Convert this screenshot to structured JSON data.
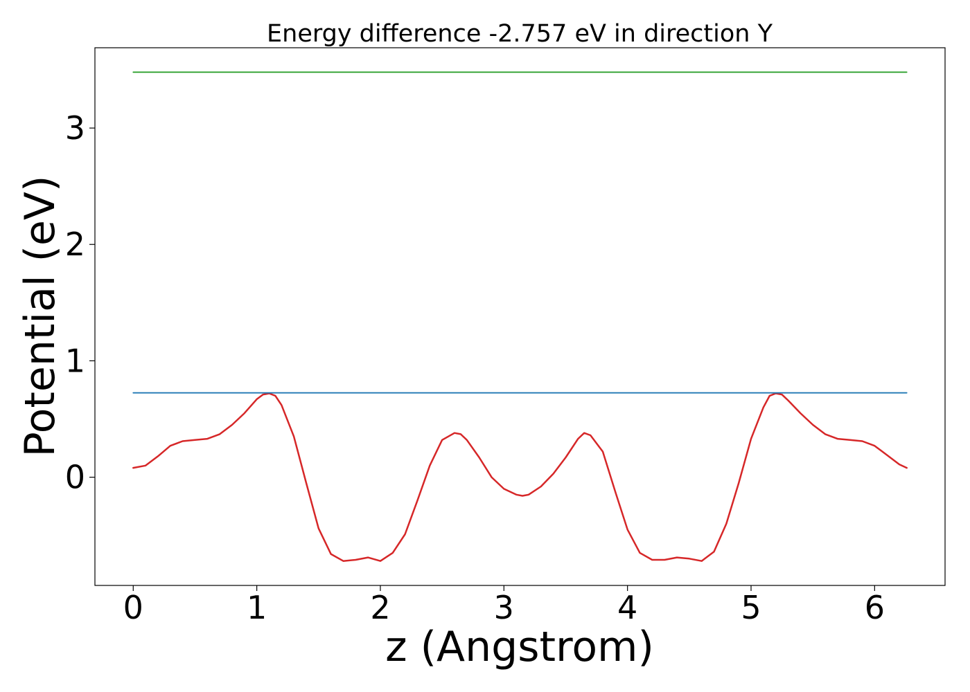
{
  "chart_data": {
    "type": "line",
    "title": "Energy difference -2.757 eV in direction Y",
    "xlabel": "z (Angstrom)",
    "ylabel": "Potential (eV)",
    "xlim": [
      -0.31,
      6.57
    ],
    "ylim": [
      -0.93,
      3.69
    ],
    "xticks": [
      0,
      1,
      2,
      3,
      4,
      5,
      6
    ],
    "xtick_labels": [
      "0",
      "1",
      "2",
      "3",
      "4",
      "5",
      "6"
    ],
    "yticks": [
      0,
      1,
      2,
      3
    ],
    "ytick_labels": [
      "0",
      "1",
      "2",
      "3"
    ],
    "grid": false,
    "series": [
      {
        "color": "#d62728",
        "x": [
          0,
          0.1,
          0.2,
          0.3,
          0.4,
          0.5,
          0.6,
          0.7,
          0.8,
          0.9,
          1.0,
          1.05,
          1.1,
          1.15,
          1.2,
          1.3,
          1.4,
          1.5,
          1.6,
          1.7,
          1.8,
          1.9,
          2.0,
          2.1,
          2.2,
          2.3,
          2.4,
          2.5,
          2.6,
          2.65,
          2.7,
          2.8,
          2.9,
          3.0,
          3.1,
          3.15,
          3.2,
          3.3,
          3.4,
          3.5,
          3.6,
          3.65,
          3.7,
          3.8,
          3.9,
          4.0,
          4.1,
          4.2,
          4.3,
          4.4,
          4.5,
          4.6,
          4.7,
          4.8,
          4.9,
          5.0,
          5.1,
          5.15,
          5.2,
          5.25,
          5.3,
          5.4,
          5.5,
          5.6,
          5.7,
          5.8,
          5.9,
          6.0,
          6.1,
          6.2,
          6.26
        ],
        "y": [
          0.08,
          0.1,
          0.18,
          0.27,
          0.31,
          0.32,
          0.33,
          0.37,
          0.45,
          0.55,
          0.67,
          0.71,
          0.72,
          0.7,
          0.62,
          0.35,
          -0.05,
          -0.44,
          -0.66,
          -0.72,
          -0.71,
          -0.69,
          -0.72,
          -0.65,
          -0.49,
          -0.2,
          0.1,
          0.32,
          0.38,
          0.37,
          0.32,
          0.17,
          0.0,
          -0.1,
          -0.15,
          -0.16,
          -0.15,
          -0.08,
          0.03,
          0.17,
          0.33,
          0.38,
          0.36,
          0.22,
          -0.12,
          -0.45,
          -0.65,
          -0.71,
          -0.71,
          -0.69,
          -0.7,
          -0.72,
          -0.64,
          -0.4,
          -0.05,
          0.33,
          0.6,
          0.7,
          0.72,
          0.71,
          0.66,
          0.55,
          0.45,
          0.37,
          0.33,
          0.32,
          0.31,
          0.27,
          0.19,
          0.11,
          0.08
        ]
      },
      {
        "color": "#1f77b4",
        "x": [
          0,
          6.26
        ],
        "y": [
          0.725,
          0.725
        ]
      },
      {
        "color": "#2ca02c",
        "x": [
          0,
          6.26
        ],
        "y": [
          3.48,
          3.48
        ]
      }
    ]
  }
}
